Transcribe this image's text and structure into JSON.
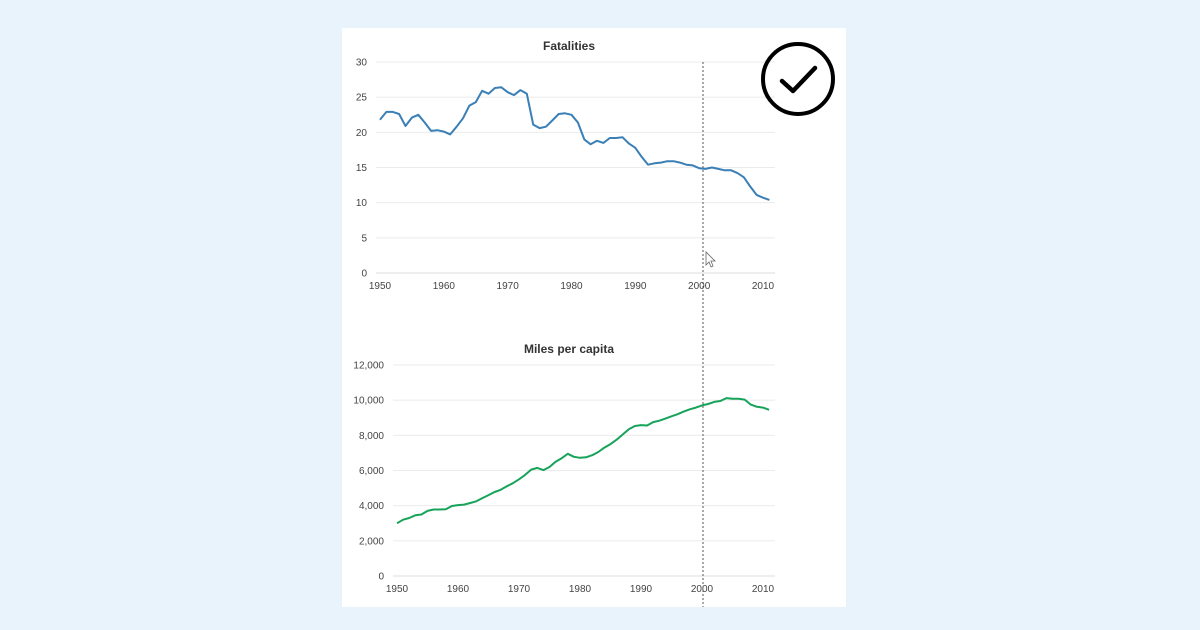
{
  "chart_data": [
    {
      "type": "line",
      "title": "Fatalities",
      "xlabel": "",
      "ylabel": "",
      "xlim": [
        1950,
        2011
      ],
      "ylim": [
        0,
        30
      ],
      "x_ticks": [
        "1950",
        "1960",
        "1970",
        "1980",
        "1990",
        "2000",
        "2010"
      ],
      "y_ticks": [
        "0",
        "5",
        "10",
        "15",
        "20",
        "25",
        "30"
      ],
      "grid": true,
      "color": "#3a7fb5",
      "x": [
        1950,
        1951,
        1952,
        1953,
        1954,
        1955,
        1956,
        1957,
        1958,
        1959,
        1960,
        1961,
        1962,
        1963,
        1964,
        1965,
        1966,
        1967,
        1968,
        1969,
        1970,
        1971,
        1972,
        1973,
        1974,
        1975,
        1976,
        1977,
        1978,
        1979,
        1980,
        1981,
        1982,
        1983,
        1984,
        1985,
        1986,
        1987,
        1988,
        1989,
        1990,
        1991,
        1992,
        1993,
        1994,
        1995,
        1996,
        1997,
        1998,
        1999,
        2000,
        2001,
        2002,
        2003,
        2004,
        2005,
        2006,
        2007,
        2008,
        2009,
        2010,
        2011
      ],
      "values": [
        21.8,
        22.9,
        22.9,
        22.6,
        20.9,
        22.1,
        22.5,
        21.4,
        20.2,
        20.3,
        20.1,
        19.7,
        20.8,
        22.0,
        23.8,
        24.3,
        25.9,
        25.5,
        26.3,
        26.4,
        25.7,
        25.3,
        26.0,
        25.5,
        21.1,
        20.6,
        20.8,
        21.7,
        22.6,
        22.7,
        22.5,
        21.4,
        19.0,
        18.3,
        18.8,
        18.5,
        19.2,
        19.2,
        19.3,
        18.4,
        17.8,
        16.5,
        15.4,
        15.6,
        15.7,
        15.9,
        15.9,
        15.7,
        15.4,
        15.3,
        14.9,
        14.8,
        15.0,
        14.8,
        14.6,
        14.6,
        14.2,
        13.6,
        12.3,
        11.1,
        10.7,
        10.4
      ],
      "reference_line_x": 2000
    },
    {
      "type": "line",
      "title": "Miles per capita",
      "xlabel": "",
      "ylabel": "",
      "xlim": [
        1950,
        2011
      ],
      "ylim": [
        0,
        12000
      ],
      "x_ticks": [
        "1950",
        "1960",
        "1970",
        "1980",
        "1990",
        "2000",
        "2010"
      ],
      "y_ticks": [
        "0",
        "2,000",
        "4,000",
        "6,000",
        "8,000",
        "10,000",
        "12,000"
      ],
      "grid": true,
      "color": "#17a35a",
      "x": [
        1950,
        1951,
        1952,
        1953,
        1954,
        1955,
        1956,
        1957,
        1958,
        1959,
        1960,
        1961,
        1962,
        1963,
        1964,
        1965,
        1966,
        1967,
        1968,
        1969,
        1970,
        1971,
        1972,
        1973,
        1974,
        1975,
        1976,
        1977,
        1978,
        1979,
        1980,
        1981,
        1982,
        1983,
        1984,
        1985,
        1986,
        1987,
        1988,
        1989,
        1990,
        1991,
        1992,
        1993,
        1994,
        1995,
        1996,
        1997,
        1998,
        1999,
        2000,
        2001,
        2002,
        2003,
        2004,
        2005,
        2006,
        2007,
        2008,
        2009,
        2010,
        2011
      ],
      "values": [
        3000,
        3200,
        3300,
        3450,
        3500,
        3700,
        3780,
        3780,
        3800,
        3980,
        4030,
        4060,
        4150,
        4250,
        4430,
        4600,
        4780,
        4900,
        5100,
        5280,
        5500,
        5750,
        6050,
        6150,
        6020,
        6200,
        6500,
        6700,
        6950,
        6780,
        6720,
        6750,
        6870,
        7050,
        7300,
        7500,
        7750,
        8050,
        8350,
        8530,
        8580,
        8560,
        8750,
        8830,
        8950,
        9080,
        9200,
        9350,
        9480,
        9580,
        9700,
        9780,
        9900,
        9950,
        10120,
        10080,
        10080,
        10030,
        9750,
        9620,
        9580,
        9450
      ],
      "reference_line_x": 2000
    }
  ],
  "badge": {
    "icon": "check-circle-icon"
  }
}
